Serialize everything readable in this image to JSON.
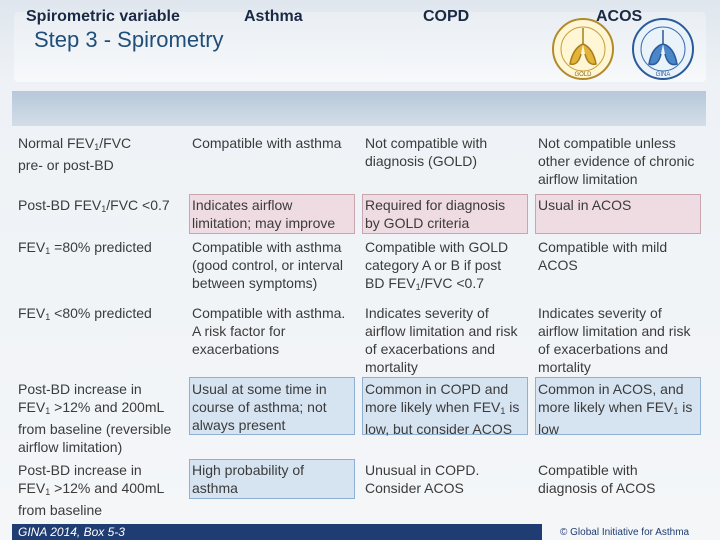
{
  "slide": {
    "title": "Step 3 - Spirometry",
    "colors": {
      "header_band": "#c6d4e3",
      "pink_highlight": "#efdbe2",
      "blue_highlight": "#d6e3f1",
      "footer": "#1f3c73"
    }
  },
  "logos": {
    "gold_label": "GOLD",
    "gina_label": "GINA"
  },
  "table": {
    "headers": [
      "Spirometric variable",
      "Asthma",
      "COPD",
      "ACOS"
    ],
    "rows": [
      {
        "variable": [
          "Normal FEV1/FVC",
          "pre- or post-BD"
        ],
        "asthma": [
          "Compatible with asthma"
        ],
        "copd": [
          "Not compatible with",
          "diagnosis (GOLD)"
        ],
        "acos": [
          "Not compatible unless",
          "other evidence of chronic",
          "airflow limitation"
        ]
      },
      {
        "variable": [
          "Post-BD FEV1/FVC <0.7"
        ],
        "asthma": [
          "Indicates airflow",
          "limitation; may improve"
        ],
        "copd": [
          "Required for diagnosis",
          "by GOLD criteria"
        ],
        "acos": [
          "Usual in ACOS"
        ]
      },
      {
        "variable": [
          "FEV1 =80% predicted"
        ],
        "asthma": [
          "Compatible with asthma",
          "(good control, or interval",
          "between symptoms)"
        ],
        "copd": [
          "Compatible with GOLD",
          "category A or B if post",
          "BD FEV1/FVC <0.7"
        ],
        "acos": [
          "Compatible with mild",
          "ACOS"
        ]
      },
      {
        "variable": [
          "FEV1 <80% predicted"
        ],
        "asthma": [
          "Compatible with asthma.",
          "A risk factor for",
          "exacerbations"
        ],
        "copd": [
          "Indicates severity of",
          "airflow limitation and risk",
          "of exacerbations and",
          "mortality"
        ],
        "acos": [
          "Indicates severity of",
          "airflow limitation and risk",
          "of exacerbations and",
          "mortality"
        ]
      },
      {
        "variable": [
          "Post-BD increase in",
          "FEV1 >12% and 200mL",
          "from baseline (reversible",
          "airflow limitation)"
        ],
        "asthma": [
          "Usual at some time in",
          "course of asthma; not",
          "always present"
        ],
        "copd": [
          "Common in COPD and",
          "more likely when FEV1 is",
          "low, but consider ACOS"
        ],
        "acos": [
          "Common in ACOS, and",
          "more likely when FEV1 is",
          "low"
        ]
      },
      {
        "variable": [
          "Post-BD increase in",
          "FEV1 >12% and 400mL",
          "from baseline"
        ],
        "asthma": [
          "High probability of",
          "asthma"
        ],
        "copd": [
          "Unusual in COPD.",
          "Consider ACOS"
        ],
        "acos": [
          "Compatible with",
          "diagnosis of ACOS"
        ]
      }
    ]
  },
  "footer": {
    "source": "GINA 2014, Box 5-3",
    "copyright": "© Global Initiative for Asthma"
  }
}
